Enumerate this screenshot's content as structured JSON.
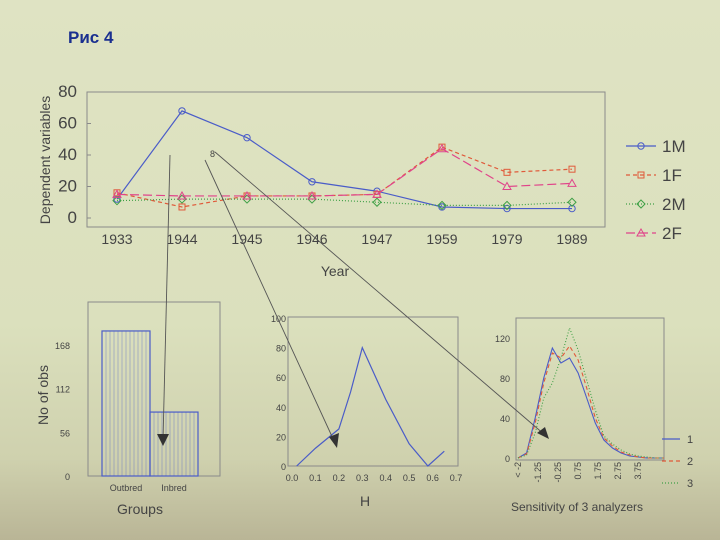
{
  "slide": {
    "title": "Рис 4"
  },
  "chart_data": [
    {
      "type": "line",
      "title": "",
      "xlabel": "Year",
      "ylabel": "Dependent variables",
      "categories": [
        "1933",
        "1944",
        "1945",
        "1946",
        "1947",
        "1959",
        "1979",
        "1989"
      ],
      "ylim": [
        0,
        80
      ],
      "yticks": [
        "0",
        "20",
        "40",
        "60",
        "80"
      ],
      "annotation": "8",
      "series": [
        {
          "name": "1M",
          "color": "#4a5cc8",
          "marker": "circle",
          "dash": "",
          "values": [
            12,
            68,
            51,
            23,
            17,
            7,
            6,
            6
          ]
        },
        {
          "name": "1F",
          "color": "#e05a3a",
          "marker": "square",
          "dash": "4,3",
          "values": [
            16,
            7,
            14,
            14,
            15,
            45,
            29,
            31
          ]
        },
        {
          "name": "2M",
          "color": "#3fa046",
          "marker": "diamond",
          "dash": "1,2",
          "values": [
            11,
            12,
            12,
            12,
            10,
            8,
            8,
            10
          ]
        },
        {
          "name": "2F",
          "color": "#e0448a",
          "marker": "triangle",
          "dash": "9,4",
          "values": [
            15,
            14,
            14,
            14,
            15,
            44,
            20,
            22
          ]
        }
      ]
    },
    {
      "type": "bar",
      "title": "",
      "xlabel": "Groups",
      "ylabel": "No of obs",
      "categories": [
        "Outbred",
        "Inbred"
      ],
      "values": [
        186,
        82
      ],
      "ylim": [
        0,
        168
      ],
      "yticks": [
        "0",
        "56",
        "112",
        "168"
      ],
      "color": "#4a5cc8"
    },
    {
      "type": "line",
      "title": "",
      "xlabel": "H",
      "ylabel": "",
      "xticks": [
        "0.0",
        "0.1",
        "0.2",
        "0.3",
        "0.4",
        "0.5",
        "0.6",
        "0.7"
      ],
      "yticks": [
        "0",
        "20",
        "40",
        "60",
        "80",
        "100"
      ],
      "xlim": [
        0,
        0.7
      ],
      "ylim": [
        0,
        100
      ],
      "series": [
        {
          "name": "",
          "color": "#4a5cc8",
          "x": [
            0.02,
            0.1,
            0.2,
            0.25,
            0.3,
            0.4,
            0.5,
            0.58,
            0.65
          ],
          "values": [
            0,
            12,
            25,
            50,
            80,
            45,
            15,
            0,
            10
          ]
        }
      ]
    },
    {
      "type": "line",
      "title": "",
      "xlabel": "Sensitivity of 3 analyzers",
      "ylabel": "",
      "xticks": [
        "< -2",
        "-1.25",
        "-0.25",
        "0.75",
        "1.75",
        "2.75",
        "3.75"
      ],
      "yticks": [
        "0",
        "40",
        "80",
        "120"
      ],
      "ylim": [
        0,
        140
      ],
      "series": [
        {
          "name": "1",
          "color": "#4a5cc8",
          "dash": "",
          "x": [
            0,
            1,
            2,
            3,
            4,
            5,
            6,
            7,
            8,
            9,
            10,
            11,
            12,
            13,
            14,
            15,
            16,
            17
          ],
          "values": [
            0,
            5,
            40,
            80,
            110,
            95,
            100,
            85,
            60,
            35,
            18,
            10,
            5,
            2,
            1,
            0,
            0,
            0
          ]
        },
        {
          "name": "2",
          "color": "#e05a3a",
          "dash": "4,3",
          "x": [
            0,
            1,
            2,
            3,
            4,
            5,
            6,
            7,
            8,
            9,
            10,
            11,
            12,
            13,
            14,
            15,
            16,
            17
          ],
          "values": [
            0,
            4,
            35,
            75,
            105,
            100,
            112,
            98,
            70,
            40,
            20,
            12,
            6,
            3,
            1,
            0,
            0,
            0
          ]
        },
        {
          "name": "3",
          "color": "#3fa046",
          "dash": "1,2",
          "x": [
            0,
            1,
            2,
            3,
            4,
            5,
            6,
            7,
            8,
            9,
            10,
            11,
            12,
            13,
            14,
            15,
            16,
            17
          ],
          "values": [
            0,
            3,
            25,
            60,
            75,
            100,
            130,
            108,
            78,
            48,
            22,
            14,
            8,
            4,
            2,
            1,
            0,
            0
          ]
        }
      ]
    }
  ]
}
